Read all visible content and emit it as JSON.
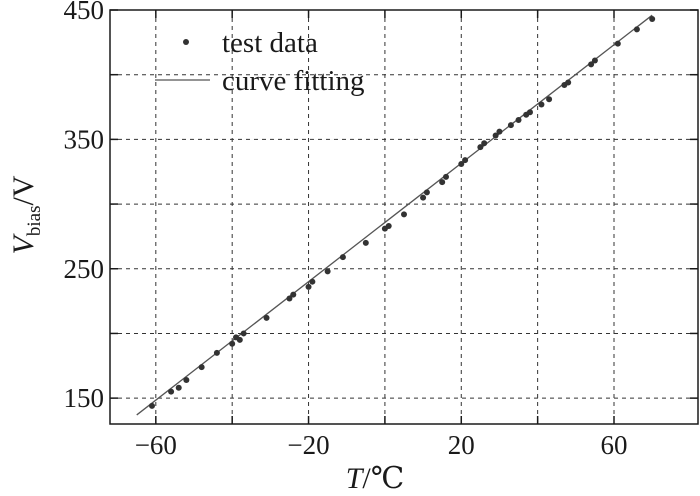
{
  "chart_data": {
    "type": "scatter",
    "title": "",
    "xlabel": {
      "symbol": "T",
      "unit": "/℃"
    },
    "ylabel": {
      "symbol": "V",
      "subscript": "bias",
      "unit": "/V"
    },
    "xlim": [
      -72,
      82
    ],
    "ylim": [
      130,
      450
    ],
    "x_ticks": [
      -60,
      -20,
      20,
      60
    ],
    "x_ticks_minor": [
      -40,
      0,
      40
    ],
    "y_ticks": [
      150,
      250,
      350,
      450
    ],
    "y_ticks_minor": [
      200,
      300,
      400
    ],
    "grid": true,
    "legend": {
      "position": "top-left"
    },
    "series": [
      {
        "name": "test data",
        "kind": "scatter",
        "x": [
          -61,
          -56,
          -54,
          -52,
          -48,
          -44,
          -40,
          -39,
          -38,
          -37,
          -31,
          -25,
          -24,
          -20,
          -19,
          -15,
          -11,
          -5,
          0,
          1,
          5,
          10,
          11,
          15,
          16,
          20,
          21,
          25,
          26,
          29,
          30,
          33,
          35,
          37,
          38,
          41,
          43,
          47,
          48,
          54,
          55,
          61,
          66,
          70
        ],
        "y": [
          144,
          155,
          158,
          164,
          174,
          185,
          192,
          197,
          195,
          200,
          212,
          227,
          230,
          236,
          240,
          248,
          259,
          270,
          281,
          283,
          292,
          305,
          309,
          317,
          321,
          331,
          334,
          344,
          347,
          353,
          356,
          361,
          365,
          369,
          371,
          377,
          381,
          392,
          394,
          408,
          411,
          424,
          435,
          443
        ]
      },
      {
        "name": "curve fitting",
        "kind": "line",
        "x": [
          -65,
          70
        ],
        "y": [
          137,
          446
        ]
      }
    ]
  }
}
